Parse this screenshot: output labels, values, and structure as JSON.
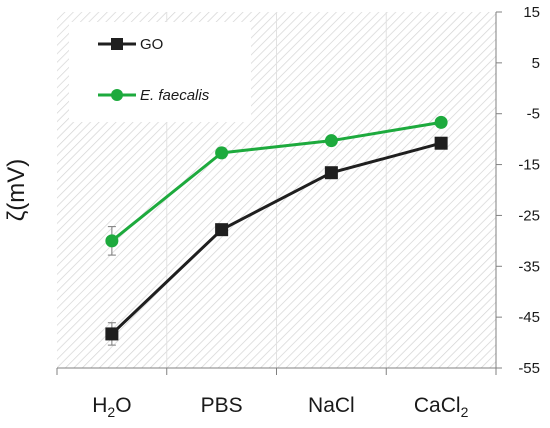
{
  "chart_data": {
    "type": "line",
    "ylabel": "ζ(mV)",
    "ylim": [
      -55,
      15
    ],
    "y_ticks": [
      "15",
      "5",
      "-5",
      "-15",
      "-25",
      "-35",
      "-45",
      "-55"
    ],
    "y_tick_values": [
      15,
      5,
      -5,
      -15,
      -25,
      -35,
      -45,
      -55
    ],
    "categories": [
      "H2O",
      "PBS",
      "NaCl",
      "CaCl2"
    ],
    "category_labels": [
      {
        "main": "H",
        "sub": "2",
        "tail": "O"
      },
      {
        "main": "PBS",
        "sub": "",
        "tail": ""
      },
      {
        "main": "NaCl",
        "sub": "",
        "tail": ""
      },
      {
        "main": "CaCl",
        "sub": "2",
        "tail": ""
      }
    ],
    "series": [
      {
        "name": "GO",
        "color": "#1f1f1f",
        "marker": "square",
        "values": [
          -48.3,
          -27.8,
          -16.6,
          -10.8
        ],
        "errors": [
          2.2,
          1.0,
          0.5,
          0.5
        ]
      },
      {
        "name": "E. faecalis",
        "color": "#1daa3d",
        "marker": "circle",
        "italic": true,
        "values": [
          -30.0,
          -12.7,
          -10.3,
          -6.7
        ],
        "errors": [
          2.8,
          1.0,
          0.5,
          0.5
        ]
      }
    ],
    "legend": {
      "position": "top-left"
    },
    "background": "diagonal-hatch",
    "grid": false
  }
}
